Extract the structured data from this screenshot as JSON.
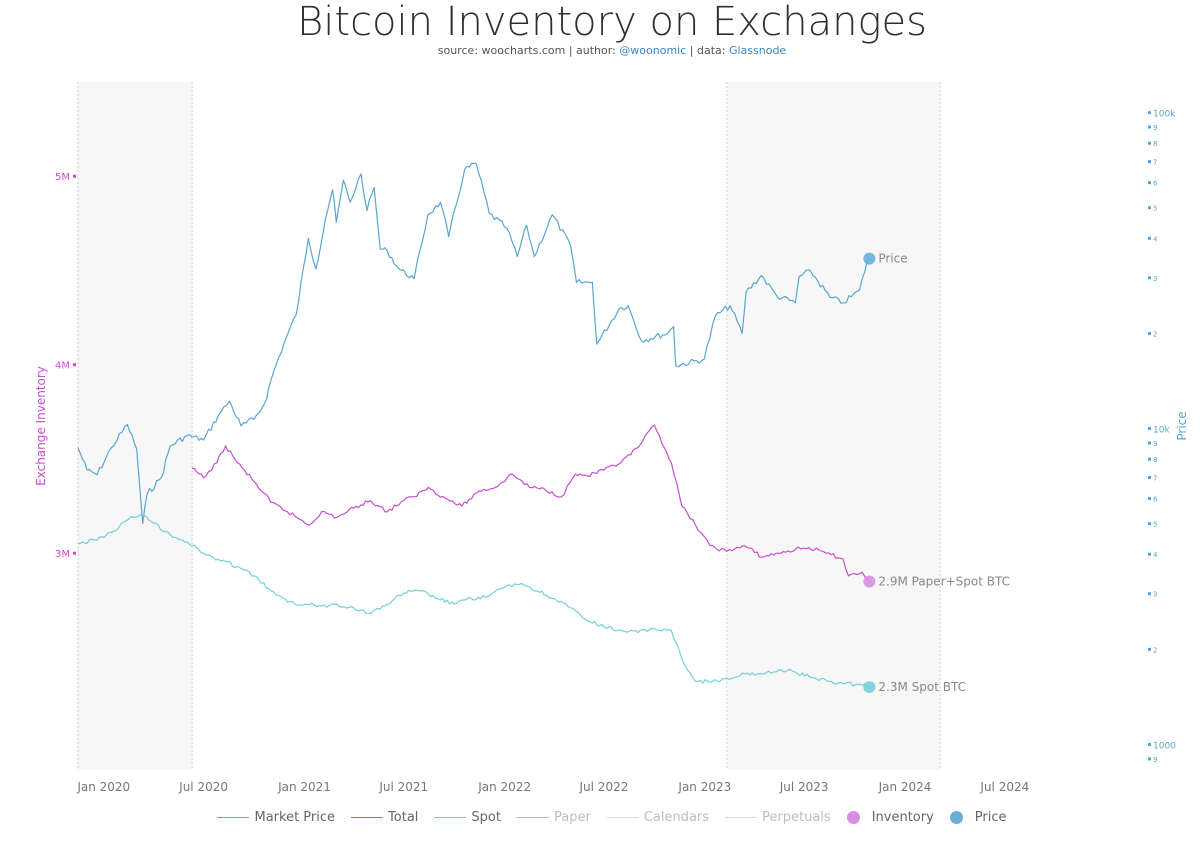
{
  "header": {
    "title": "Bitcoin Inventory on Exchanges",
    "source_prefix": "source:",
    "source": "woocharts.com",
    "author_prefix": "| author:",
    "author": "@woonomic",
    "data_prefix": "| data:",
    "data_source": "Glassnode"
  },
  "colors": {
    "price": "#5aa6cf",
    "total": "#c84fd0",
    "spot": "#74d0d6",
    "paper": "#e8a2a2",
    "faded": "#d9d9d9",
    "inventory_dot": "#d88ee0",
    "price_dot": "#6aaed8",
    "shade": "#f7f7f7"
  },
  "legend": [
    {
      "label": "Market Price",
      "kind": "line",
      "color": "#5aa6cf",
      "faded": false,
      "name": "legend-market-price"
    },
    {
      "label": "Total",
      "kind": "line",
      "color": "#c84fd0",
      "faded": false,
      "name": "legend-total"
    },
    {
      "label": "Spot",
      "kind": "line",
      "color": "#74d0d6",
      "faded": false,
      "name": "legend-spot"
    },
    {
      "label": "Paper",
      "kind": "line",
      "color": "#e8a2a2",
      "faded": true,
      "name": "legend-paper"
    },
    {
      "label": "Calendars",
      "kind": "line",
      "color": "#dddddd",
      "faded": true,
      "name": "legend-calendars"
    },
    {
      "label": "Perpetuals",
      "kind": "line",
      "color": "#dddddd",
      "faded": true,
      "name": "legend-perpetuals"
    },
    {
      "label": "Inventory",
      "kind": "dot",
      "color": "#d88ee0",
      "faded": false,
      "name": "legend-inventory"
    },
    {
      "label": "Price",
      "kind": "dot",
      "color": "#6aaed8",
      "faded": false,
      "name": "legend-price"
    }
  ],
  "chart_data": {
    "type": "line",
    "title": "Bitcoin Inventory on Exchanges",
    "x_axis": {
      "start": "2019-11-15",
      "end": "2024-09-25",
      "ticks": [
        {
          "date": "2020-01-01",
          "label": "Jan 2020"
        },
        {
          "date": "2020-07-01",
          "label": "Jul 2020"
        },
        {
          "date": "2021-01-01",
          "label": "Jan 2021"
        },
        {
          "date": "2021-07-01",
          "label": "Jul 2021"
        },
        {
          "date": "2022-01-01",
          "label": "Jan 2022"
        },
        {
          "date": "2022-07-01",
          "label": "Jul 2022"
        },
        {
          "date": "2023-01-01",
          "label": "Jan 2023"
        },
        {
          "date": "2023-07-01",
          "label": "Jul 2023"
        },
        {
          "date": "2024-01-01",
          "label": "Jan 2024"
        },
        {
          "date": "2024-07-01",
          "label": "Jul 2024"
        }
      ]
    },
    "left_axis": {
      "label": "Exchange Inventory",
      "ticks": [
        {
          "value": 3000000,
          "label": "3M"
        },
        {
          "value": 4000000,
          "label": "4M"
        },
        {
          "value": 5000000,
          "label": "5M"
        }
      ],
      "range": [
        1850000,
        5500000
      ]
    },
    "right_axis": {
      "label": "Price",
      "scale": "log",
      "range": [
        830,
        125000
      ],
      "major_ticks": [
        {
          "value": 1000,
          "label": "1000"
        },
        {
          "value": 10000,
          "label": "10k"
        },
        {
          "value": 100000,
          "label": "100k"
        }
      ],
      "minor_ticks": [
        {
          "value": 2000,
          "label": "2"
        },
        {
          "value": 3000,
          "label": "3"
        },
        {
          "value": 4000,
          "label": "4"
        },
        {
          "value": 5000,
          "label": "5"
        },
        {
          "value": 6000,
          "label": "6"
        },
        {
          "value": 7000,
          "label": "7"
        },
        {
          "value": 8000,
          "label": "8"
        },
        {
          "value": 9000,
          "label": "9"
        },
        {
          "value": 20000,
          "label": "2"
        },
        {
          "value": 30000,
          "label": "3"
        },
        {
          "value": 40000,
          "label": "4"
        },
        {
          "value": 50000,
          "label": "5"
        },
        {
          "value": 60000,
          "label": "6"
        },
        {
          "value": 70000,
          "label": "7"
        },
        {
          "value": 80000,
          "label": "8"
        },
        {
          "value": 90000,
          "label": "9"
        },
        {
          "value": 400,
          "label": "4"
        },
        {
          "value": 500,
          "label": "5"
        },
        {
          "value": 600,
          "label": "6"
        },
        {
          "value": 700,
          "label": "7"
        },
        {
          "value": 800,
          "label": "8"
        },
        {
          "value": 900,
          "label": "9"
        }
      ]
    },
    "shaded_regions": [
      {
        "start": "2019-11-15",
        "end": "2020-06-10"
      },
      {
        "start": "2023-02-10",
        "end": "2024-03-05"
      }
    ],
    "series": [
      {
        "name": "Market Price",
        "axis": "right",
        "points": [
          [
            "2019-11-15",
            8700
          ],
          [
            "2019-12-01",
            7400
          ],
          [
            "2019-12-20",
            7150
          ],
          [
            "2020-01-15",
            8700
          ],
          [
            "2020-02-13",
            10300
          ],
          [
            "2020-03-01",
            8600
          ],
          [
            "2020-03-12",
            5000
          ],
          [
            "2020-03-20",
            6200
          ],
          [
            "2020-04-15",
            7000
          ],
          [
            "2020-05-01",
            8800
          ],
          [
            "2020-06-01",
            9500
          ],
          [
            "2020-07-01",
            9200
          ],
          [
            "2020-07-28",
            11000
          ],
          [
            "2020-08-17",
            12200
          ],
          [
            "2020-09-07",
            10200
          ],
          [
            "2020-10-01",
            10700
          ],
          [
            "2020-10-20",
            12000
          ],
          [
            "2020-11-05",
            15000
          ],
          [
            "2020-11-25",
            18700
          ],
          [
            "2020-12-17",
            23000
          ],
          [
            "2021-01-08",
            40000
          ],
          [
            "2021-01-22",
            32000
          ],
          [
            "2021-02-08",
            46000
          ],
          [
            "2021-02-21",
            57000
          ],
          [
            "2021-02-28",
            45000
          ],
          [
            "2021-03-13",
            61000
          ],
          [
            "2021-03-25",
            52000
          ],
          [
            "2021-04-14",
            64000
          ],
          [
            "2021-04-25",
            49000
          ],
          [
            "2021-05-08",
            58000
          ],
          [
            "2021-05-19",
            37000
          ],
          [
            "2021-06-01",
            36500
          ],
          [
            "2021-06-22",
            32000
          ],
          [
            "2021-07-20",
            29800
          ],
          [
            "2021-08-14",
            47500
          ],
          [
            "2021-09-06",
            52000
          ],
          [
            "2021-09-21",
            40500
          ],
          [
            "2021-10-20",
            66000
          ],
          [
            "2021-11-10",
            69000
          ],
          [
            "2021-12-04",
            48000
          ],
          [
            "2022-01-05",
            43000
          ],
          [
            "2022-01-24",
            35000
          ],
          [
            "2022-02-10",
            44000
          ],
          [
            "2022-02-24",
            35000
          ],
          [
            "2022-03-29",
            47500
          ],
          [
            "2022-05-01",
            38000
          ],
          [
            "2022-05-12",
            29000
          ],
          [
            "2022-06-10",
            29000
          ],
          [
            "2022-06-18",
            18500
          ],
          [
            "2022-07-29",
            24000
          ],
          [
            "2022-08-14",
            24500
          ],
          [
            "2022-09-07",
            19000
          ],
          [
            "2022-10-25",
            20000
          ],
          [
            "2022-11-05",
            21000
          ],
          [
            "2022-11-09",
            15800
          ],
          [
            "2022-12-31",
            16600
          ],
          [
            "2023-01-20",
            22700
          ],
          [
            "2023-02-16",
            24500
          ],
          [
            "2023-03-10",
            20000
          ],
          [
            "2023-03-17",
            27000
          ],
          [
            "2023-04-14",
            30500
          ],
          [
            "2023-05-12",
            26300
          ],
          [
            "2023-06-15",
            25000
          ],
          [
            "2023-06-22",
            30300
          ],
          [
            "2023-07-13",
            31500
          ],
          [
            "2023-08-17",
            26000
          ],
          [
            "2023-09-11",
            25000
          ],
          [
            "2023-10-10",
            27400
          ],
          [
            "2023-10-24",
            33900
          ],
          [
            "2023-10-28",
            34500
          ]
        ]
      },
      {
        "name": "Total",
        "axis": "left",
        "points": [
          [
            "2020-06-10",
            3450000
          ],
          [
            "2020-07-01",
            3400000
          ],
          [
            "2020-07-25",
            3480000
          ],
          [
            "2020-08-10",
            3570000
          ],
          [
            "2020-09-01",
            3480000
          ],
          [
            "2020-10-01",
            3380000
          ],
          [
            "2020-11-01",
            3270000
          ],
          [
            "2020-12-01",
            3220000
          ],
          [
            "2021-01-10",
            3150000
          ],
          [
            "2021-02-01",
            3220000
          ],
          [
            "2021-03-01",
            3190000
          ],
          [
            "2021-04-01",
            3240000
          ],
          [
            "2021-05-01",
            3280000
          ],
          [
            "2021-06-01",
            3220000
          ],
          [
            "2021-07-01",
            3280000
          ],
          [
            "2021-07-20",
            3300000
          ],
          [
            "2021-08-15",
            3350000
          ],
          [
            "2021-09-15",
            3290000
          ],
          [
            "2021-10-15",
            3250000
          ],
          [
            "2021-11-15",
            3330000
          ],
          [
            "2021-12-15",
            3350000
          ],
          [
            "2022-01-15",
            3420000
          ],
          [
            "2022-02-15",
            3350000
          ],
          [
            "2022-03-15",
            3340000
          ],
          [
            "2022-04-15",
            3300000
          ],
          [
            "2022-05-10",
            3420000
          ],
          [
            "2022-06-01",
            3410000
          ],
          [
            "2022-07-01",
            3440000
          ],
          [
            "2022-08-01",
            3480000
          ],
          [
            "2022-09-01",
            3560000
          ],
          [
            "2022-10-01",
            3680000
          ],
          [
            "2022-11-01",
            3480000
          ],
          [
            "2022-11-20",
            3250000
          ],
          [
            "2022-12-15",
            3150000
          ],
          [
            "2023-01-10",
            3040000
          ],
          [
            "2023-02-10",
            3010000
          ],
          [
            "2023-03-15",
            3040000
          ],
          [
            "2023-04-15",
            2980000
          ],
          [
            "2023-05-15",
            3000000
          ],
          [
            "2023-06-15",
            3020000
          ],
          [
            "2023-07-10",
            3030000
          ],
          [
            "2023-08-10",
            3000000
          ],
          [
            "2023-09-10",
            2970000
          ],
          [
            "2023-09-20",
            2880000
          ],
          [
            "2023-10-15",
            2900000
          ],
          [
            "2023-10-28",
            2850000
          ]
        ]
      },
      {
        "name": "Spot",
        "axis": "left",
        "points": [
          [
            "2019-11-15",
            3050000
          ],
          [
            "2019-12-15",
            3070000
          ],
          [
            "2020-01-15",
            3110000
          ],
          [
            "2020-02-15",
            3180000
          ],
          [
            "2020-03-10",
            3210000
          ],
          [
            "2020-04-01",
            3160000
          ],
          [
            "2020-05-01",
            3100000
          ],
          [
            "2020-06-01",
            3060000
          ],
          [
            "2020-07-01",
            3000000
          ],
          [
            "2020-08-01",
            2960000
          ],
          [
            "2020-09-01",
            2930000
          ],
          [
            "2020-10-01",
            2880000
          ],
          [
            "2020-11-01",
            2800000
          ],
          [
            "2020-12-01",
            2740000
          ],
          [
            "2021-01-01",
            2730000
          ],
          [
            "2021-02-01",
            2720000
          ],
          [
            "2021-03-01",
            2730000
          ],
          [
            "2021-04-01",
            2710000
          ],
          [
            "2021-05-01",
            2680000
          ],
          [
            "2021-06-01",
            2730000
          ],
          [
            "2021-07-01",
            2790000
          ],
          [
            "2021-08-01",
            2800000
          ],
          [
            "2021-09-01",
            2760000
          ],
          [
            "2021-10-01",
            2730000
          ],
          [
            "2021-11-01",
            2760000
          ],
          [
            "2021-12-01",
            2770000
          ],
          [
            "2022-01-01",
            2820000
          ],
          [
            "2022-02-01",
            2840000
          ],
          [
            "2022-03-01",
            2800000
          ],
          [
            "2022-04-01",
            2760000
          ],
          [
            "2022-05-01",
            2710000
          ],
          [
            "2022-06-01",
            2640000
          ],
          [
            "2022-07-01",
            2610000
          ],
          [
            "2022-08-01",
            2590000
          ],
          [
            "2022-09-01",
            2580000
          ],
          [
            "2022-10-01",
            2600000
          ],
          [
            "2022-11-01",
            2590000
          ],
          [
            "2022-11-20",
            2440000
          ],
          [
            "2022-12-15",
            2320000
          ],
          [
            "2023-01-15",
            2320000
          ],
          [
            "2023-02-15",
            2330000
          ],
          [
            "2023-03-15",
            2360000
          ],
          [
            "2023-04-15",
            2360000
          ],
          [
            "2023-05-15",
            2380000
          ],
          [
            "2023-06-15",
            2370000
          ],
          [
            "2023-07-15",
            2340000
          ],
          [
            "2023-08-15",
            2320000
          ],
          [
            "2023-09-15",
            2310000
          ],
          [
            "2023-10-15",
            2300000
          ],
          [
            "2023-10-28",
            2290000
          ]
        ]
      }
    ],
    "end_labels": [
      {
        "series": "Market Price",
        "text": "Price"
      },
      {
        "series": "Total",
        "text": "2.9M Paper+Spot BTC"
      },
      {
        "series": "Spot",
        "text": "2.3M Spot BTC"
      }
    ]
  }
}
